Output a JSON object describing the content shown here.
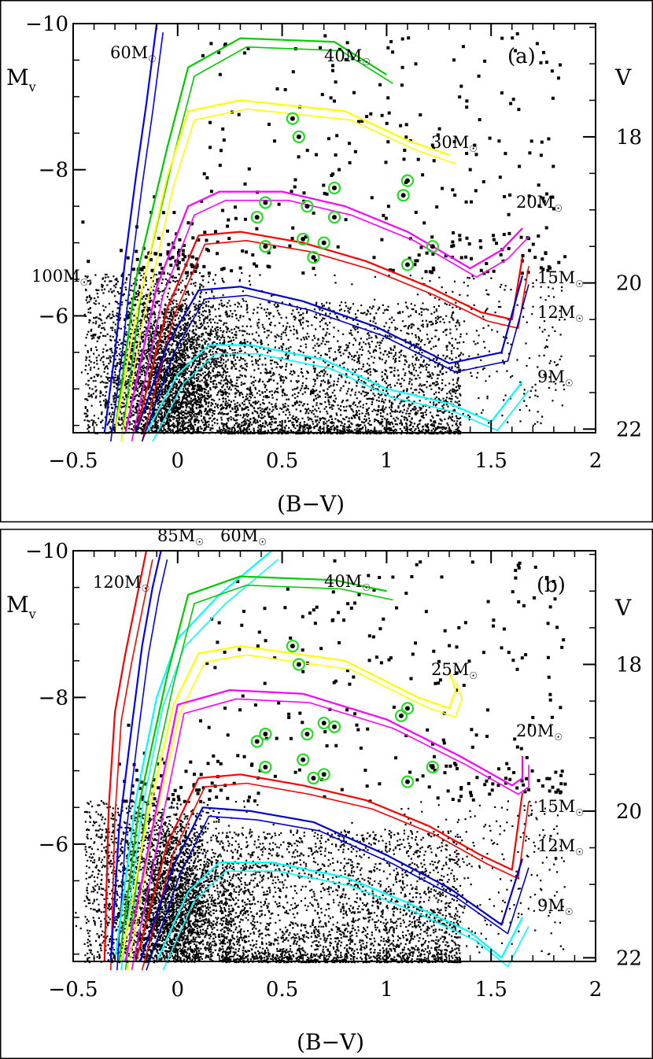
{
  "figure": {
    "border_color": "#000000",
    "background": "#ffffff"
  },
  "chart_data": [
    {
      "type": "scatter",
      "panel_label": "(a)",
      "xlabel": "(B−V)",
      "ylabel": "M",
      "ylabel_sub": "v",
      "y2label": "V",
      "xlim": [
        -0.5,
        2.0
      ],
      "ylim": [
        -10.0,
        -4.4
      ],
      "y2lim": [
        16.45,
        22.05
      ],
      "x_ticks": [
        -0.5,
        0,
        0.5,
        1,
        1.5,
        2
      ],
      "x_tick_labels": [
        "−0.5",
        "0",
        "0.5",
        "1",
        "1.5",
        "2"
      ],
      "y_ticks": [
        -10,
        -8,
        -6
      ],
      "y_tick_labels": [
        "−10",
        "−8",
        "−6"
      ],
      "y2_ticks": [
        18,
        20,
        22
      ],
      "y2_tick_labels": [
        "18",
        "20",
        "22"
      ],
      "series": [
        {
          "name": "60M",
          "color": "#0000ff",
          "label": "60M",
          "x": [
            -0.35,
            -0.3,
            -0.25,
            -0.2,
            -0.15,
            -0.1
          ],
          "y": [
            -4.4,
            -5.5,
            -6.8,
            -7.9,
            -8.9,
            -10.0
          ]
        },
        {
          "name": "40M",
          "color": "#00cc00",
          "label": "40M",
          "x": [
            -0.3,
            -0.2,
            -0.05,
            0.05,
            0.3,
            0.75,
            1.0
          ],
          "y": [
            -4.4,
            -6.5,
            -8.3,
            -9.4,
            -9.8,
            -9.75,
            -9.3
          ]
        },
        {
          "name": "30M",
          "color": "#ffff00",
          "label": "30M",
          "x": [
            -0.3,
            -0.2,
            -0.05,
            0.05,
            0.3,
            0.8,
            1.1,
            1.3
          ],
          "y": [
            -4.4,
            -6.0,
            -7.9,
            -8.8,
            -8.95,
            -8.8,
            -8.4,
            -8.2
          ]
        },
        {
          "name": "20M",
          "color": "#ff00ff",
          "label": "20M",
          "x": [
            -0.25,
            -0.1,
            0.05,
            0.2,
            0.5,
            0.8,
            1.1,
            1.4,
            1.55,
            1.65
          ],
          "y": [
            -4.4,
            -6.4,
            -7.5,
            -7.7,
            -7.7,
            -7.5,
            -7.15,
            -6.65,
            -6.9,
            -7.2
          ]
        },
        {
          "name": "15M",
          "color": "#ff0000",
          "label": "15M",
          "x": [
            -0.2,
            -0.05,
            0.1,
            0.3,
            0.6,
            0.9,
            1.2,
            1.45,
            1.6,
            1.65
          ],
          "y": [
            -4.4,
            -6.1,
            -7.1,
            -7.15,
            -7.0,
            -6.75,
            -6.4,
            -6.05,
            -5.95,
            -6.8
          ]
        },
        {
          "name": "12M",
          "color": "#0000cc",
          "label": "12M",
          "x": [
            -0.2,
            -0.05,
            0.1,
            0.3,
            0.6,
            0.95,
            1.3,
            1.55,
            1.65
          ],
          "y": [
            -4.4,
            -5.6,
            -6.35,
            -6.4,
            -6.2,
            -5.85,
            -5.35,
            -5.5,
            -6.55
          ]
        },
        {
          "name": "9M",
          "color": "#00ffff",
          "label": "9M",
          "x": [
            -0.15,
            0.0,
            0.15,
            0.35,
            0.7,
            1.0,
            1.3,
            1.5,
            1.65
          ],
          "y": [
            -4.4,
            -5.2,
            -5.6,
            -5.6,
            -5.4,
            -5.0,
            -4.8,
            -4.55,
            -5.1
          ]
        }
      ],
      "highlight_points": [
        {
          "x": 0.55,
          "y": -8.7
        },
        {
          "x": 0.58,
          "y": -8.45
        },
        {
          "x": 0.75,
          "y": -7.75
        },
        {
          "x": 1.1,
          "y": -7.85
        },
        {
          "x": 1.08,
          "y": -7.65
        },
        {
          "x": 0.42,
          "y": -7.55
        },
        {
          "x": 0.62,
          "y": -7.5
        },
        {
          "x": 0.38,
          "y": -7.35
        },
        {
          "x": 0.75,
          "y": -7.35
        },
        {
          "x": 0.42,
          "y": -6.95
        },
        {
          "x": 0.6,
          "y": -7.05
        },
        {
          "x": 0.7,
          "y": -7.0
        },
        {
          "x": 0.65,
          "y": -6.8
        },
        {
          "x": 1.22,
          "y": -6.95
        },
        {
          "x": 1.1,
          "y": -6.7
        }
      ],
      "annotations": [
        {
          "text": "100M",
          "x": -0.75,
          "y": -6.5
        }
      ]
    },
    {
      "type": "scatter",
      "panel_label": "(b)",
      "xlabel": "(B−V)",
      "ylabel": "M",
      "ylabel_sub": "v",
      "y2label": "V",
      "xlim": [
        -0.5,
        2.0
      ],
      "ylim": [
        -10.0,
        -4.4
      ],
      "y2lim": [
        16.45,
        22.05
      ],
      "x_ticks": [
        -0.5,
        0,
        0.5,
        1,
        1.5,
        2
      ],
      "x_tick_labels": [
        "−0.5",
        "0",
        "0.5",
        "1",
        "1.5",
        "2"
      ],
      "y_ticks": [
        -10,
        -8,
        -6
      ],
      "y_tick_labels": [
        "−10",
        "−8",
        "−6"
      ],
      "y2_ticks": [
        18,
        20,
        22
      ],
      "y2_tick_labels": [
        "18",
        "20",
        "22"
      ],
      "series": [
        {
          "name": "120M",
          "color": "#ff0000",
          "label": "120M",
          "x": [
            -0.35,
            -0.33,
            -0.3,
            -0.25,
            -0.2,
            -0.15
          ],
          "y": [
            -4.4,
            -6.5,
            -7.8,
            -8.6,
            -9.3,
            -10.0
          ]
        },
        {
          "name": "85M",
          "color": "#0000ff",
          "label": "85M",
          "x": [
            -0.32,
            -0.28,
            -0.22,
            -0.17,
            -0.12,
            -0.08
          ],
          "y": [
            -4.4,
            -6.2,
            -7.6,
            -8.7,
            -9.5,
            -10.0
          ]
        },
        {
          "name": "60M",
          "color": "#00ffff",
          "label": "60M",
          "x": [
            -0.3,
            -0.2,
            -0.1,
            0.0,
            0.2,
            0.45
          ],
          "y": [
            -4.4,
            -6.6,
            -8.0,
            -8.8,
            -9.4,
            -10.0
          ]
        },
        {
          "name": "40M",
          "color": "#00cc00",
          "label": "40M",
          "x": [
            -0.28,
            -0.18,
            -0.05,
            0.05,
            0.3,
            0.75,
            1.0
          ],
          "y": [
            -4.4,
            -6.6,
            -8.3,
            -9.4,
            -9.65,
            -9.6,
            -9.45
          ]
        },
        {
          "name": "25M",
          "color": "#ffff00",
          "label": "25M",
          "x": [
            -0.27,
            -0.15,
            -0.02,
            0.1,
            0.3,
            0.8,
            1.15,
            1.3,
            1.33,
            1.3
          ],
          "y": [
            -4.4,
            -6.3,
            -7.9,
            -8.6,
            -8.7,
            -8.5,
            -8.0,
            -7.85,
            -8.1,
            -8.35
          ]
        },
        {
          "name": "20M",
          "color": "#ff00ff",
          "label": "20M",
          "x": [
            -0.25,
            -0.1,
            0.0,
            0.25,
            0.6,
            1.0,
            1.35,
            1.6,
            1.65,
            1.65
          ],
          "y": [
            -4.4,
            -6.5,
            -7.9,
            -8.1,
            -8.05,
            -7.7,
            -7.2,
            -6.8,
            -6.9,
            -7.2
          ]
        },
        {
          "name": "15M",
          "color": "#ff0000",
          "label": "15M",
          "x": [
            -0.2,
            -0.05,
            0.1,
            0.3,
            0.6,
            0.9,
            1.2,
            1.45,
            1.6,
            1.65
          ],
          "y": [
            -4.4,
            -6.0,
            -6.9,
            -6.95,
            -6.8,
            -6.6,
            -6.25,
            -5.85,
            -5.65,
            -6.7
          ]
        },
        {
          "name": "12M",
          "color": "#0000cc",
          "label": "12M",
          "x": [
            -0.18,
            -0.02,
            0.12,
            0.35,
            0.65,
            1.0,
            1.3,
            1.55,
            1.65
          ],
          "y": [
            -4.4,
            -5.7,
            -6.5,
            -6.45,
            -6.3,
            -5.85,
            -5.4,
            -4.9,
            -5.8
          ]
        },
        {
          "name": "9M",
          "color": "#00ffff",
          "label": "9M",
          "x": [
            -0.1,
            0.05,
            0.2,
            0.45,
            0.8,
            1.1,
            1.4,
            1.55,
            1.65
          ],
          "y": [
            -4.4,
            -5.35,
            -5.75,
            -5.75,
            -5.55,
            -5.2,
            -4.8,
            -4.45,
            -5.0
          ]
        }
      ],
      "highlight_points": [
        {
          "x": 0.55,
          "y": -8.7
        },
        {
          "x": 0.58,
          "y": -8.45
        },
        {
          "x": 0.75,
          "y": -7.6
        },
        {
          "x": 1.1,
          "y": -7.85
        },
        {
          "x": 1.07,
          "y": -7.75
        },
        {
          "x": 0.42,
          "y": -7.5
        },
        {
          "x": 0.62,
          "y": -7.5
        },
        {
          "x": 0.38,
          "y": -7.4
        },
        {
          "x": 0.7,
          "y": -7.65
        },
        {
          "x": 0.42,
          "y": -7.05
        },
        {
          "x": 0.6,
          "y": -7.15
        },
        {
          "x": 0.7,
          "y": -6.95
        },
        {
          "x": 0.65,
          "y": -6.9
        },
        {
          "x": 1.22,
          "y": -7.05
        },
        {
          "x": 1.1,
          "y": -6.85
        }
      ],
      "annotations": []
    }
  ]
}
